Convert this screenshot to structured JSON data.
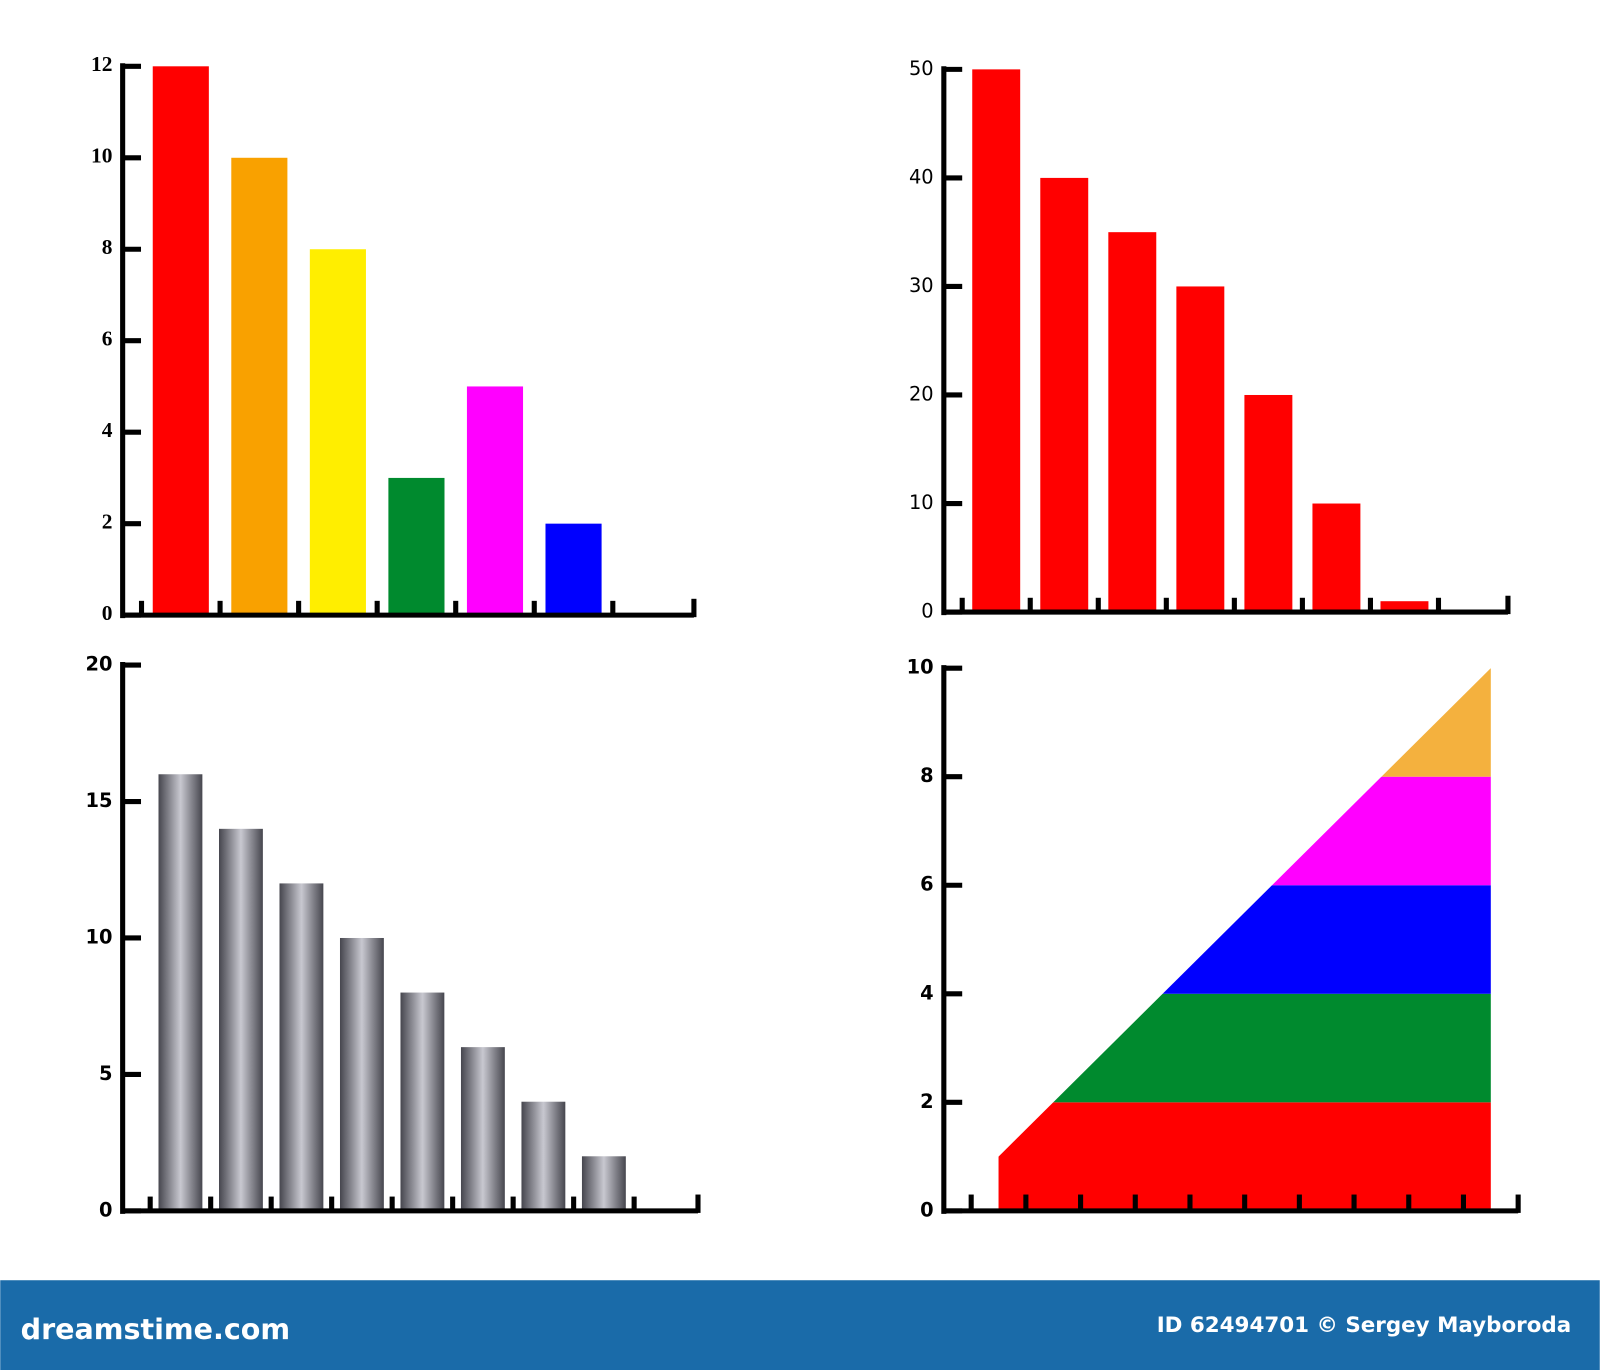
{
  "chart_data": [
    {
      "type": "bar",
      "categories": [
        null,
        null,
        null,
        null,
        null,
        null
      ],
      "values": [
        12,
        10,
        8,
        3,
        5,
        2
      ],
      "colors": [
        "#ff0000",
        "#f9a100",
        "#ffee00",
        "#008a2e",
        "#ff00ff",
        "#0000ff"
      ],
      "ylim": [
        0,
        12
      ],
      "yticks": [
        0,
        2,
        4,
        6,
        8,
        10,
        12
      ]
    },
    {
      "type": "bar",
      "categories": [
        null,
        null,
        null,
        null,
        null,
        null,
        null
      ],
      "values": [
        50,
        40,
        35,
        30,
        20,
        10,
        1
      ],
      "color": "#ff0000",
      "ylim": [
        0,
        50
      ],
      "yticks": [
        0,
        10,
        20,
        30,
        40,
        50
      ]
    },
    {
      "type": "bar",
      "categories": [
        null,
        null,
        null,
        null,
        null,
        null,
        null,
        null
      ],
      "values": [
        16,
        14,
        12,
        10,
        8,
        6,
        4,
        2
      ],
      "color": "#46464e",
      "gradient": true,
      "ylim": [
        0,
        20
      ],
      "yticks": [
        0,
        5,
        10,
        15,
        20
      ]
    },
    {
      "type": "area",
      "x": [
        1,
        10
      ],
      "values": [
        1,
        10
      ],
      "xlim": [
        0,
        10.5
      ],
      "ylim": [
        0,
        10
      ],
      "yticks": [
        0,
        2,
        4,
        6,
        8,
        10
      ],
      "bands": [
        {
          "color": "#ff0000",
          "range": [
            0,
            2
          ]
        },
        {
          "color": "#008a2e",
          "range": [
            2,
            4
          ]
        },
        {
          "color": "#0000ff",
          "range": [
            4,
            6
          ]
        },
        {
          "color": "#ff00ff",
          "range": [
            6,
            8
          ]
        },
        {
          "color": "#f4b13e",
          "range": [
            8,
            10
          ]
        }
      ]
    }
  ],
  "footer": {
    "site": "dreamstime.com",
    "credit": "ID 62494701 © Sergey Mayboroda"
  }
}
